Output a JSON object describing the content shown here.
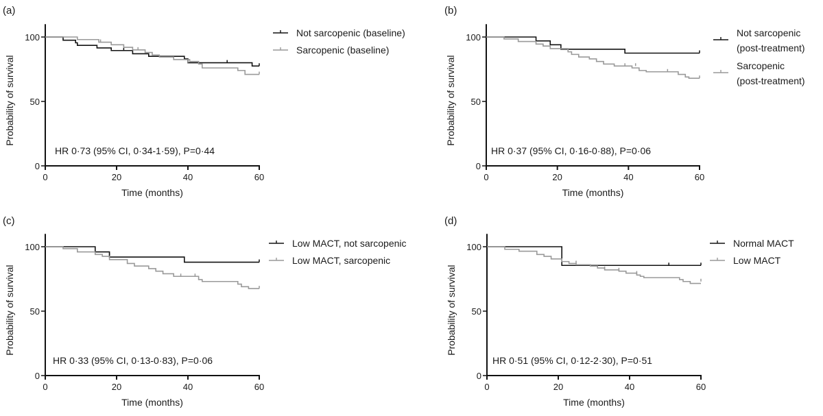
{
  "chart_data": [
    {
      "type": "line",
      "subtype": "kaplan-meier step",
      "panel_label": "(a)",
      "xlabel": "Time (months)",
      "ylabel": "Probability of survival",
      "xlim": [
        0,
        60
      ],
      "ylim": [
        0,
        110
      ],
      "xticks": [
        "0",
        "20",
        "40",
        "60"
      ],
      "yticks": [
        "0",
        "50",
        "100"
      ],
      "annotation": "HR 0·73 (95% CI, 0·34-1·59), P=0·44",
      "legend_position": "top-right outside",
      "series": [
        {
          "name": "Not sarcopenic (baseline)",
          "color": "#111111",
          "steps": [
            [
              0,
              100
            ],
            [
              5,
              97.5
            ],
            [
              8.5,
              95.5
            ],
            [
              9,
              93.5
            ],
            [
              14.5,
              91.5
            ],
            [
              18.5,
              89.5
            ],
            [
              24.5,
              87
            ],
            [
              29,
              85
            ],
            [
              39,
              83
            ],
            [
              40,
              80
            ],
            [
              58,
              77.5
            ],
            [
              60,
              77.5
            ]
          ],
          "censored": [
            [
              22,
              89.5
            ],
            [
              51,
              80
            ],
            [
              60,
              77.5
            ]
          ]
        },
        {
          "name": "Sarcopenic (baseline)",
          "color": "#999999",
          "steps": [
            [
              0,
              100
            ],
            [
              9,
              98
            ],
            [
              15,
              96
            ],
            [
              18.5,
              94
            ],
            [
              22,
              92
            ],
            [
              24.5,
              90
            ],
            [
              28,
              88
            ],
            [
              30,
              86
            ],
            [
              32,
              84.5
            ],
            [
              36,
              82.5
            ],
            [
              40.5,
              81
            ],
            [
              43,
              79
            ],
            [
              44,
              76
            ],
            [
              54,
              74
            ],
            [
              56,
              71
            ],
            [
              60,
              71
            ]
          ],
          "censored": [
            [
              15.5,
              96
            ],
            [
              26,
              90
            ],
            [
              40,
              80
            ],
            [
              60,
              71
            ]
          ]
        }
      ]
    },
    {
      "type": "line",
      "subtype": "kaplan-meier step",
      "panel_label": "(b)",
      "xlabel": "Time (months)",
      "ylabel": "Probability of survival",
      "xlim": [
        0,
        60
      ],
      "ylim": [
        0,
        110
      ],
      "xticks": [
        "0",
        "20",
        "40",
        "60"
      ],
      "yticks": [
        "0",
        "50",
        "100"
      ],
      "annotation": "HR 0·37 (95% CI, 0·16-0·88), P=0·06",
      "legend_position": "top-right outside",
      "series": [
        {
          "name": "Not sarcopenic (post-treatment)",
          "name_lines": [
            "Not sarcopenic",
            "(post-treatment)"
          ],
          "color": "#111111",
          "steps": [
            [
              0,
              100
            ],
            [
              14,
              97
            ],
            [
              18,
              94
            ],
            [
              21,
              90.5
            ],
            [
              39,
              87.5
            ],
            [
              60,
              87.5
            ]
          ],
          "censored": [
            [
              60,
              87.5
            ]
          ]
        },
        {
          "name": "Sarcopenic (post-treatment)",
          "name_lines": [
            "Sarcopenic",
            "(post-treatment)"
          ],
          "color": "#999999",
          "steps": [
            [
              0,
              100
            ],
            [
              5,
              98.5
            ],
            [
              9,
              96.5
            ],
            [
              14,
              94.5
            ],
            [
              16,
              93
            ],
            [
              18,
              91
            ],
            [
              23,
              88.5
            ],
            [
              24,
              86.5
            ],
            [
              26,
              84.5
            ],
            [
              29,
              83
            ],
            [
              31,
              81
            ],
            [
              33,
              79
            ],
            [
              36,
              77.5
            ],
            [
              41,
              76
            ],
            [
              43,
              74
            ],
            [
              45,
              73
            ],
            [
              54,
              71
            ],
            [
              56,
              69
            ],
            [
              57,
              68
            ],
            [
              60,
              68
            ]
          ],
          "censored": [
            [
              39,
              77.5
            ],
            [
              42,
              77.5
            ],
            [
              51,
              73
            ],
            [
              60,
              68
            ]
          ]
        }
      ]
    },
    {
      "type": "line",
      "subtype": "kaplan-meier step",
      "panel_label": "(c)",
      "xlabel": "Time (months)",
      "ylabel": "Probability of survival",
      "xlim": [
        0,
        60
      ],
      "ylim": [
        0,
        110
      ],
      "xticks": [
        "0",
        "20",
        "40",
        "60"
      ],
      "yticks": [
        "0",
        "50",
        "100"
      ],
      "annotation": "HR 0·33 (95% CI, 0·13-0·83), P=0·06",
      "legend_position": "top-right outside",
      "series": [
        {
          "name": "Low MACT, not sarcopenic",
          "color": "#111111",
          "steps": [
            [
              0,
              100
            ],
            [
              14,
              96
            ],
            [
              18,
              92
            ],
            [
              39,
              88
            ],
            [
              60,
              88
            ]
          ],
          "censored": [
            [
              18,
              93
            ],
            [
              60,
              88
            ]
          ]
        },
        {
          "name": "Low MACT, sarcopenic",
          "color": "#999999",
          "steps": [
            [
              0,
              100
            ],
            [
              5,
              98.5
            ],
            [
              9,
              96
            ],
            [
              14,
              94
            ],
            [
              16,
              92.5
            ],
            [
              18,
              90
            ],
            [
              23,
              87
            ],
            [
              25,
              85
            ],
            [
              29,
              83
            ],
            [
              31,
              81
            ],
            [
              33,
              79
            ],
            [
              36,
              77
            ],
            [
              41,
              77
            ],
            [
              43,
              74.5
            ],
            [
              44,
              73
            ],
            [
              54,
              71
            ],
            [
              55,
              69
            ],
            [
              57,
              67.5
            ],
            [
              60,
              67.5
            ]
          ],
          "censored": [
            [
              38,
              77
            ],
            [
              42,
              77
            ],
            [
              60,
              67.5
            ]
          ]
        }
      ]
    },
    {
      "type": "line",
      "subtype": "kaplan-meier step",
      "panel_label": "(d)",
      "xlabel": "Time (months)",
      "ylabel": "Probability of survival",
      "xlim": [
        0,
        60
      ],
      "ylim": [
        0,
        110
      ],
      "xticks": [
        "0",
        "20",
        "40",
        "60"
      ],
      "yticks": [
        "0",
        "50",
        "100"
      ],
      "annotation": "HR 0·51 (95% CI, 0·12-2·30), P=0·51",
      "legend_position": "top-right outside",
      "series": [
        {
          "name": "Normal MACT",
          "color": "#111111",
          "steps": [
            [
              0,
              100
            ],
            [
              21,
              85.5
            ],
            [
              60,
              85.5
            ]
          ],
          "censored": [
            [
              51,
              85.5
            ],
            [
              60,
              85.5
            ]
          ]
        },
        {
          "name": "Low MACT",
          "color": "#999999",
          "steps": [
            [
              0,
              100
            ],
            [
              5,
              98
            ],
            [
              9,
              96.5
            ],
            [
              14,
              94
            ],
            [
              16,
              92.5
            ],
            [
              18,
              90.5
            ],
            [
              21,
              88.5
            ],
            [
              23,
              87
            ],
            [
              25,
              86
            ],
            [
              29,
              85
            ],
            [
              31,
              83.5
            ],
            [
              33,
              82
            ],
            [
              37,
              81
            ],
            [
              39,
              79.5
            ],
            [
              42,
              78
            ],
            [
              43,
              77
            ],
            [
              44,
              76
            ],
            [
              54,
              74.5
            ],
            [
              55,
              73
            ],
            [
              57,
              71.5
            ],
            [
              60,
              71.5
            ]
          ],
          "censored": [
            [
              25,
              87
            ],
            [
              33,
              82.5
            ],
            [
              37,
              81.5
            ],
            [
              42,
              79
            ],
            [
              60,
              73
            ]
          ]
        }
      ]
    }
  ]
}
